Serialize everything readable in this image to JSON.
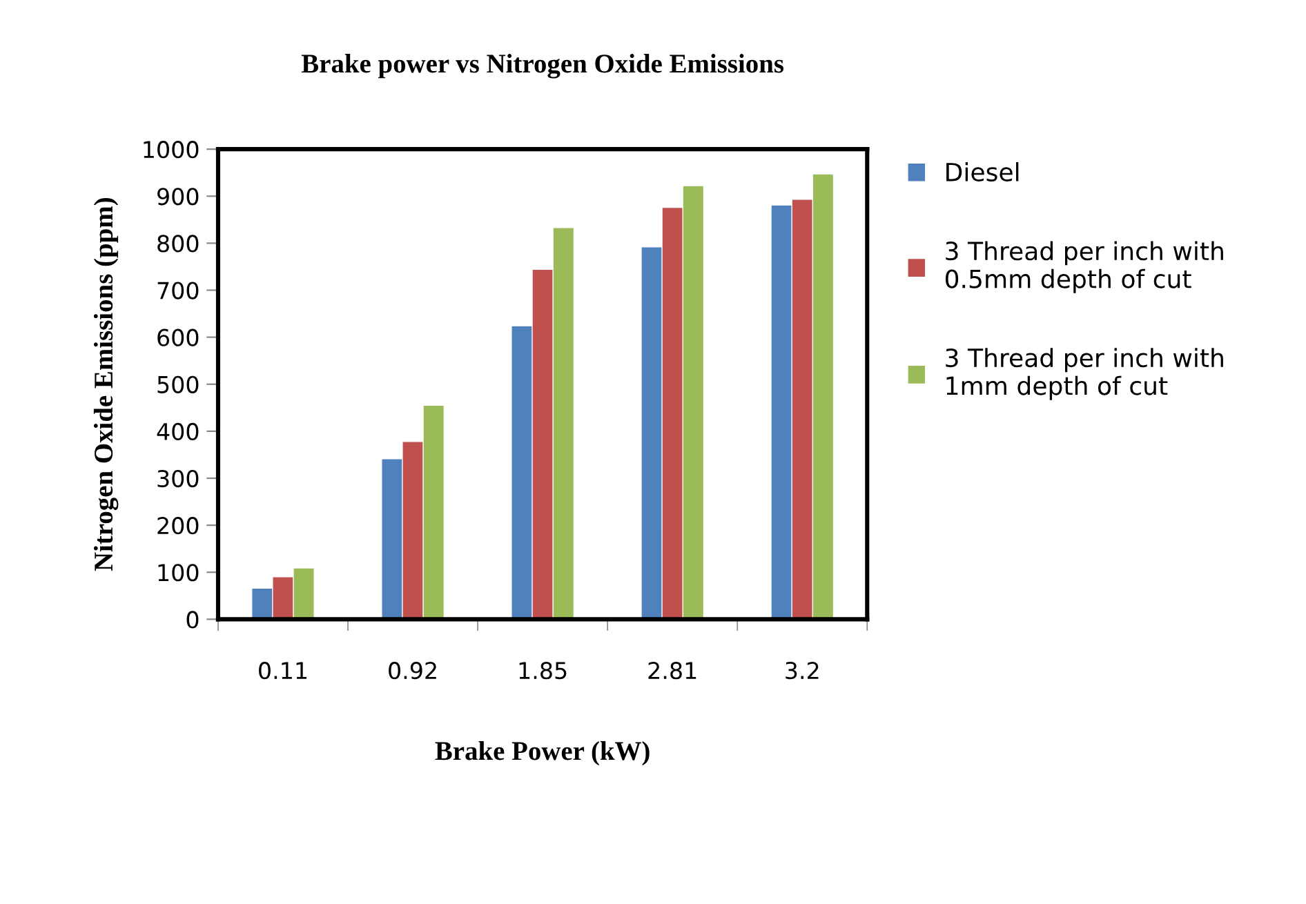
{
  "chart_data": {
    "type": "bar",
    "title": "Brake power vs Nitrogen Oxide Emissions",
    "xlabel": "Brake Power (kW)",
    "ylabel": "Nitrogen Oxide Emissions (ppm)",
    "categories": [
      "0.11",
      "0.92",
      "1.85",
      "2.81",
      "3.2"
    ],
    "series": [
      {
        "name": "Diesel",
        "color": "#4f81bd",
        "values": [
          66,
          341,
          624,
          792,
          881
        ]
      },
      {
        "name": "3 Thread per inch with\n0.5mm depth of cut",
        "color": "#c0504d",
        "values": [
          90,
          378,
          744,
          876,
          893
        ]
      },
      {
        "name": "3 Thread per inch with\n1mm depth of cut",
        "color": "#9bbb59",
        "values": [
          109,
          455,
          833,
          922,
          947
        ]
      }
    ],
    "ylim": [
      0,
      1000
    ],
    "yticks": [
      0,
      100,
      200,
      300,
      400,
      500,
      600,
      700,
      800,
      900,
      1000
    ],
    "grid": false,
    "legend": "right"
  }
}
